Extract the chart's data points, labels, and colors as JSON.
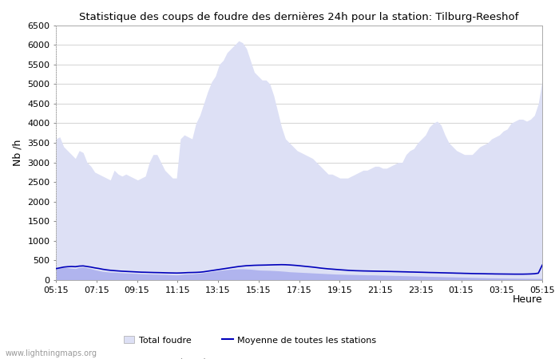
{
  "title": "Statistique des coups de foudre des dernières 24h pour la station: Tilburg-Reeshof",
  "xlabel": "Heure",
  "ylabel": "Nb /h",
  "xlim_labels": [
    "05:15",
    "07:15",
    "09:15",
    "11:15",
    "13:15",
    "15:15",
    "17:15",
    "19:15",
    "21:15",
    "23:15",
    "01:15",
    "03:15",
    "05:15"
  ],
  "ylim": [
    0,
    6500
  ],
  "yticks": [
    0,
    500,
    1000,
    1500,
    2000,
    2500,
    3000,
    3500,
    4000,
    4500,
    5000,
    5500,
    6000,
    6500
  ],
  "bg_color": "#ffffff",
  "plot_bg_color": "#ffffff",
  "grid_color": "#cccccc",
  "fill_total_color": "#dde0f5",
  "fill_station_color": "#b0b4ee",
  "line_moyenne_color": "#0000bb",
  "watermark": "www.lightningmaps.org",
  "legend_total": "Total foudre",
  "legend_moyenne": "Moyenne de toutes les stations",
  "legend_station": "Foudre détectée par Tilburg-Reeshof",
  "total_foudre": [
    3600,
    3650,
    3400,
    3300,
    3200,
    3100,
    3300,
    3250,
    3000,
    2900,
    2750,
    2700,
    2650,
    2600,
    2550,
    2800,
    2700,
    2650,
    2700,
    2650,
    2600,
    2550,
    2600,
    2650,
    3000,
    3200,
    3200,
    3000,
    2800,
    2700,
    2600,
    2600,
    3600,
    3700,
    3650,
    3600,
    4000,
    4200,
    4500,
    4800,
    5050,
    5200,
    5500,
    5600,
    5800,
    5900,
    6000,
    6100,
    6050,
    5900,
    5600,
    5300,
    5200,
    5100,
    5100,
    5000,
    4700,
    4300,
    3900,
    3600,
    3500,
    3400,
    3300,
    3250,
    3200,
    3150,
    3100,
    3000,
    2900,
    2800,
    2700,
    2700,
    2650,
    2600,
    2600,
    2600,
    2650,
    2700,
    2750,
    2800,
    2800,
    2850,
    2900,
    2900,
    2850,
    2850,
    2900,
    2950,
    3000,
    3000,
    3200,
    3300,
    3350,
    3500,
    3600,
    3700,
    3900,
    4000,
    4050,
    3950,
    3700,
    3500,
    3400,
    3300,
    3250,
    3200,
    3200,
    3200,
    3300,
    3400,
    3450,
    3500,
    3600,
    3650,
    3700,
    3800,
    3850,
    4000,
    4050,
    4100,
    4100,
    4050,
    4100,
    4200,
    4500,
    5100
  ],
  "station_foudre": [
    300,
    310,
    320,
    315,
    300,
    290,
    320,
    330,
    310,
    290,
    260,
    240,
    220,
    210,
    200,
    200,
    190,
    185,
    180,
    175,
    170,
    165,
    160,
    155,
    155,
    150,
    150,
    145,
    145,
    140,
    135,
    130,
    140,
    150,
    155,
    155,
    165,
    175,
    185,
    200,
    215,
    230,
    245,
    255,
    265,
    275,
    280,
    285,
    285,
    280,
    275,
    265,
    255,
    250,
    248,
    245,
    240,
    235,
    228,
    220,
    210,
    205,
    200,
    195,
    190,
    185,
    180,
    175,
    170,
    165,
    160,
    155,
    150,
    148,
    145,
    142,
    140,
    138,
    135,
    133,
    130,
    130,
    128,
    125,
    122,
    120,
    118,
    115,
    113,
    110,
    108,
    105,
    103,
    100,
    98,
    95,
    92,
    90,
    88,
    85,
    82,
    80,
    78,
    75,
    73,
    70,
    68,
    65,
    63,
    60,
    58,
    55,
    53,
    52,
    50,
    48,
    47,
    45,
    44,
    43,
    42,
    41,
    40,
    39,
    38,
    37
  ],
  "moyenne": [
    290,
    310,
    330,
    340,
    345,
    340,
    355,
    360,
    345,
    330,
    310,
    295,
    275,
    260,
    248,
    240,
    232,
    225,
    220,
    215,
    210,
    205,
    200,
    198,
    195,
    192,
    190,
    188,
    185,
    182,
    180,
    178,
    180,
    185,
    190,
    192,
    195,
    200,
    210,
    225,
    240,
    255,
    270,
    285,
    300,
    315,
    330,
    345,
    355,
    365,
    370,
    375,
    378,
    380,
    382,
    385,
    388,
    390,
    392,
    390,
    385,
    378,
    370,
    360,
    350,
    340,
    330,
    318,
    305,
    295,
    285,
    278,
    270,
    262,
    255,
    248,
    242,
    238,
    235,
    232,
    230,
    228,
    226,
    224,
    222,
    220,
    218,
    215,
    213,
    210,
    208,
    205,
    203,
    200,
    198,
    195,
    192,
    190,
    188,
    185,
    183,
    180,
    178,
    175,
    173,
    170,
    168,
    165,
    163,
    162,
    160,
    158,
    157,
    155,
    154,
    153,
    152,
    151,
    150,
    150,
    150,
    152,
    155,
    160,
    175,
    380
  ]
}
